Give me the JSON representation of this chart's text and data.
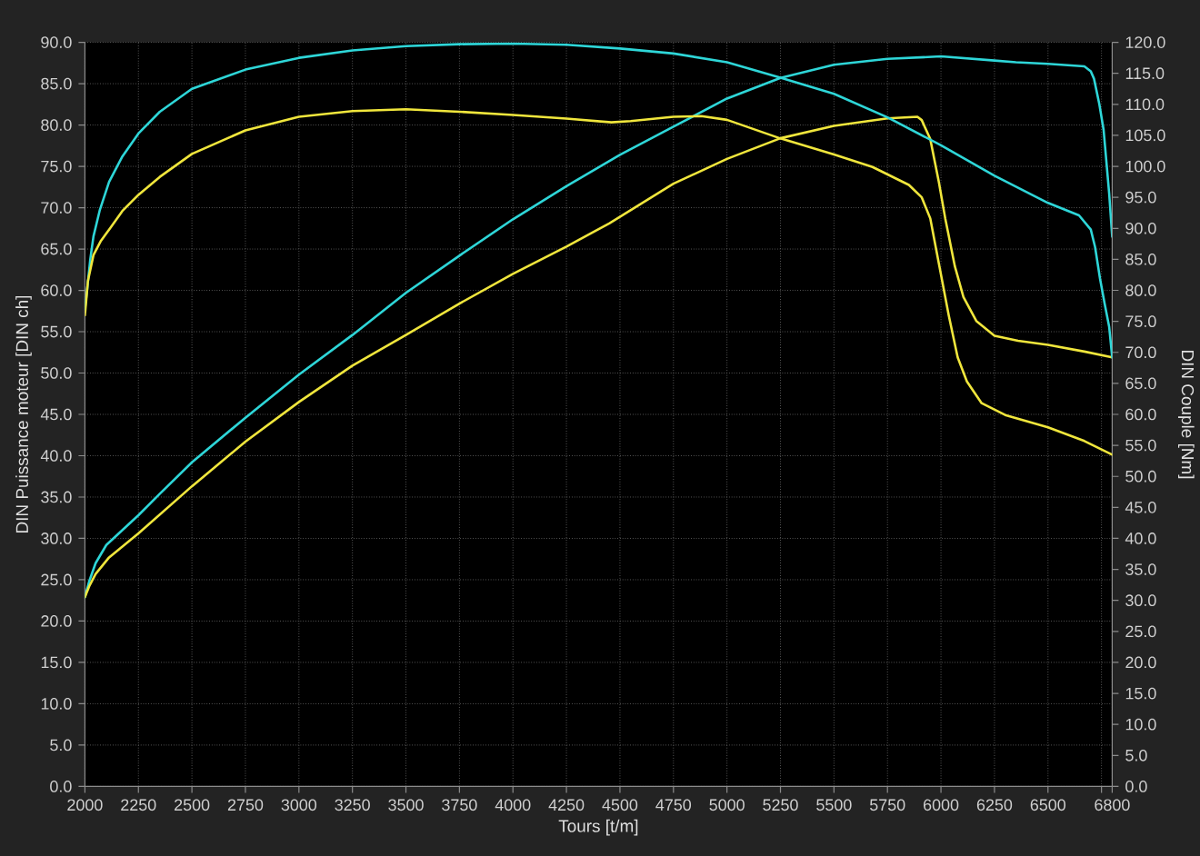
{
  "chart_data": {
    "type": "line",
    "xlabel": "Tours [t/m]",
    "ylabel": "DIN Puissance moteur [DIN ch]",
    "y2label": "DIN Couple [Nm]",
    "xlim": [
      2000,
      6800
    ],
    "xticks": [
      2000,
      2250,
      2500,
      2750,
      3000,
      3250,
      3500,
      3750,
      4000,
      4250,
      4500,
      4750,
      5000,
      5250,
      5500,
      5750,
      6000,
      6250,
      6500,
      {
        "value": 6750,
        "label": null
      },
      6800
    ],
    "ylim": [
      0,
      90
    ],
    "yticks": [
      {
        "value": 0,
        "label": "0.0"
      },
      {
        "value": 5,
        "label": "5.0"
      },
      {
        "value": 10,
        "label": "10.0"
      },
      {
        "value": 15,
        "label": "15.0"
      },
      {
        "value": 20,
        "label": "20.0"
      },
      {
        "value": 25,
        "label": "25.0"
      },
      {
        "value": 30,
        "label": "30.0"
      },
      {
        "value": 35,
        "label": "35.0"
      },
      {
        "value": 40,
        "label": "40.0"
      },
      {
        "value": 45,
        "label": "45.0"
      },
      {
        "value": 50,
        "label": "50.0"
      },
      {
        "value": 55,
        "label": "55.0"
      },
      {
        "value": 60,
        "label": "60.0"
      },
      {
        "value": 65,
        "label": "65.0"
      },
      {
        "value": 70,
        "label": "70.0"
      },
      {
        "value": 75,
        "label": "75.0"
      },
      {
        "value": 80,
        "label": "80.0"
      },
      {
        "value": 85,
        "label": "85.0"
      },
      {
        "value": 90,
        "label": "90.0"
      }
    ],
    "y2lim": [
      0,
      120
    ],
    "y2ticks": [
      {
        "value": 0,
        "label": "0.0"
      },
      {
        "value": 5,
        "label": "5.0"
      },
      {
        "value": 10,
        "label": "10.0"
      },
      {
        "value": 15,
        "label": "15.0"
      },
      {
        "value": 20,
        "label": "20.0"
      },
      {
        "value": 25,
        "label": "25.0"
      },
      {
        "value": 30,
        "label": "30.0"
      },
      {
        "value": 35,
        "label": "35.0"
      },
      {
        "value": 40,
        "label": "40.0"
      },
      {
        "value": 45,
        "label": "45.0"
      },
      {
        "value": 50,
        "label": "50.0"
      },
      {
        "value": 55,
        "label": "55.0"
      },
      {
        "value": 60,
        "label": "60.0"
      },
      {
        "value": 65,
        "label": "65.0"
      },
      {
        "value": 70,
        "label": "70.0"
      },
      {
        "value": 75,
        "label": "75.0"
      },
      {
        "value": 80,
        "label": "80.0"
      },
      {
        "value": 85,
        "label": "85.0"
      },
      {
        "value": 90,
        "label": "90.0"
      },
      {
        "value": 95,
        "label": "95.0"
      },
      {
        "value": 100,
        "label": "100.0"
      },
      {
        "value": 105,
        "label": "105.0"
      },
      {
        "value": 110,
        "label": "110.0"
      },
      {
        "value": 115,
        "label": "115.0"
      },
      {
        "value": 120,
        "label": "120.0"
      }
    ],
    "grid": true,
    "line_style": "solid",
    "series": [
      {
        "color": "#2ed6d8",
        "x": [
          2000,
          2020,
          2050,
          2100,
          2175,
          2250,
          2350,
          2500,
          2750,
          3000,
          3250,
          3500,
          3750,
          4000,
          4250,
          4500,
          4750,
          5000,
          5250,
          5500,
          5750,
          6000,
          6250,
          6350,
          6500,
          6670,
          6700,
          6715,
          6740,
          6760,
          6786,
          6800
        ],
        "values": [
          22.9,
          24.8,
          27,
          29.2,
          31,
          32.8,
          35.4,
          39.2,
          44.6,
          49.8,
          54.6,
          59.7,
          64.2,
          68.6,
          72.6,
          76.4,
          79.8,
          83.2,
          85.7,
          87.3,
          88,
          88.3,
          87.8,
          87.6,
          87.4,
          87.1,
          86.5,
          85.6,
          82.5,
          79.4,
          71.7,
          66.5
        ]
      },
      {
        "color": "#f0e63c",
        "x": [
          2000,
          2020,
          2050,
          2113,
          2250,
          2500,
          2750,
          3000,
          3250,
          3500,
          3750,
          4000,
          4250,
          4450,
          4750,
          5000,
          5250,
          5500,
          5750,
          5890,
          5910,
          5950,
          5990,
          6020,
          6065,
          6105,
          6165,
          6250,
          6360,
          6500,
          6670,
          6800
        ],
        "values": [
          22.9,
          24.2,
          25.7,
          27.7,
          30.6,
          36.3,
          41.7,
          46.5,
          50.9,
          54.6,
          58.4,
          62,
          65.3,
          68.1,
          72.9,
          75.9,
          78.4,
          79.9,
          80.8,
          81,
          80.6,
          78.3,
          73.1,
          68.7,
          62.9,
          59.2,
          56.3,
          54.5,
          53.9,
          53.4,
          52.6,
          51.9
        ]
      },
      {
        "color": "#2ed6d8",
        "axis": "y2",
        "x": [
          2000,
          2010,
          2025,
          2040,
          2070,
          2113,
          2175,
          2250,
          2350,
          2500,
          2750,
          3000,
          3250,
          3500,
          3750,
          4000,
          4250,
          4500,
          4750,
          5000,
          5250,
          5500,
          5750,
          6000,
          6250,
          6500,
          6645,
          6700,
          6720,
          6743,
          6765,
          6786,
          6800
        ],
        "values": [
          77,
          80,
          85,
          88.7,
          93,
          97.5,
          101.6,
          105.3,
          108.8,
          112.5,
          115.6,
          117.5,
          118.7,
          119.4,
          119.7,
          119.8,
          119.6,
          119,
          118.2,
          116.8,
          114.3,
          111.7,
          107.9,
          103.4,
          98.5,
          94.1,
          92.1,
          89.8,
          87,
          81.9,
          77.8,
          74.1,
          69.2
        ]
      },
      {
        "color": "#f0e63c",
        "axis": "y2",
        "x": [
          2000,
          2014,
          2040,
          2075,
          2113,
          2175,
          2250,
          2350,
          2500,
          2750,
          3000,
          3250,
          3500,
          3750,
          4000,
          4250,
          4460,
          4550,
          4750,
          4880,
          5000,
          5250,
          5500,
          5680,
          5850,
          5910,
          5950,
          5993,
          6036,
          6078,
          6121,
          6190,
          6300,
          6500,
          6670,
          6800
        ],
        "values": [
          76,
          81.5,
          85.7,
          88,
          89.8,
          92.8,
          95.4,
          98.3,
          102,
          105.8,
          108,
          108.9,
          109.2,
          108.8,
          108.3,
          107.7,
          107.1,
          107.3,
          108,
          108.1,
          107.5,
          104.5,
          101.9,
          99.9,
          97,
          95,
          91.6,
          83.8,
          76,
          69.2,
          65.3,
          61.8,
          59.9,
          57.9,
          55.7,
          53.5
        ]
      }
    ]
  }
}
